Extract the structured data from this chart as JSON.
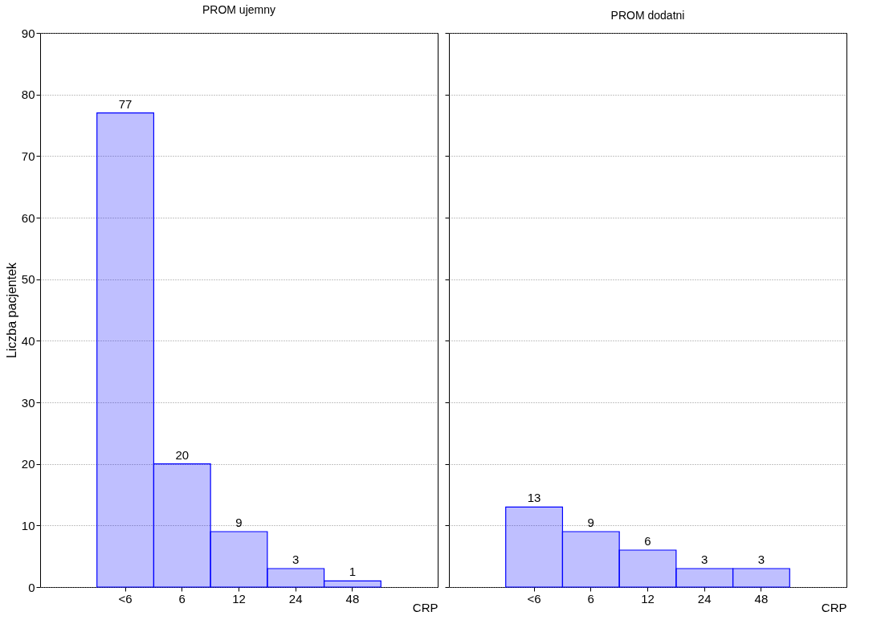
{
  "chart_data": [
    {
      "type": "bar",
      "title": "PROM ujemny",
      "xlabel": "CRP",
      "ylabel": "Liczba pacjentek",
      "categories": [
        "<6",
        "6",
        "12",
        "24",
        "48"
      ],
      "values": [
        77,
        20,
        9,
        3,
        1
      ],
      "color": "#0000ff",
      "ylim": [
        0,
        90
      ],
      "yticks": [
        0,
        10,
        20,
        30,
        40,
        50,
        60,
        70,
        80,
        90
      ],
      "grid": "y",
      "data_labels": true
    },
    {
      "type": "bar",
      "title": "PROM dodatni",
      "xlabel": "CRP",
      "categories": [
        "<6",
        "6",
        "12",
        "24",
        "48"
      ],
      "values": [
        13,
        9,
        6,
        3,
        3
      ],
      "color": "#0000ff",
      "ylim": [
        0,
        90
      ],
      "yticks": [
        0,
        10,
        20,
        30,
        40,
        50,
        60,
        70,
        80,
        90
      ],
      "grid": "y",
      "data_labels": true,
      "tick_labels": "x"
    }
  ]
}
